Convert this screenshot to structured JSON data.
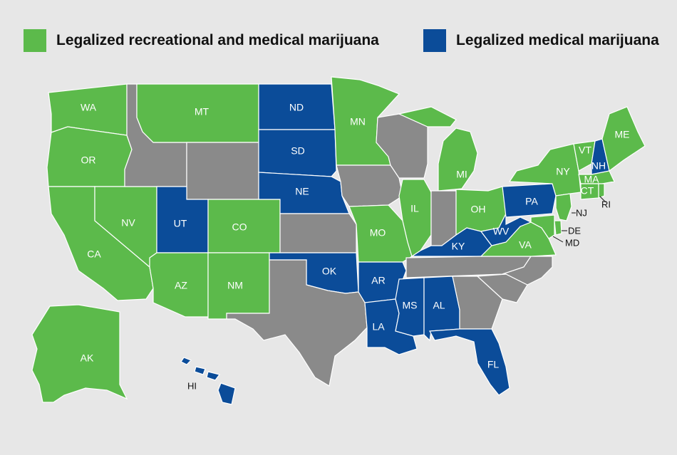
{
  "colors": {
    "recreational": "#5cba4b",
    "medical": "#0b4c99",
    "none": "#8a8a8a",
    "background": "#e7e7e7"
  },
  "legend": {
    "recreational_label": "Legalized recreational and medical marijuana",
    "medical_label": "Legalized medical marijuana"
  },
  "states": {
    "WA": {
      "label": "WA",
      "status": "recreational"
    },
    "OR": {
      "label": "OR",
      "status": "recreational"
    },
    "CA": {
      "label": "CA",
      "status": "recreational"
    },
    "NV": {
      "label": "NV",
      "status": "recreational"
    },
    "ID": {
      "label": "",
      "status": "none"
    },
    "MT": {
      "label": "MT",
      "status": "recreational"
    },
    "WY": {
      "label": "",
      "status": "none"
    },
    "UT": {
      "label": "UT",
      "status": "medical"
    },
    "AZ": {
      "label": "AZ",
      "status": "recreational"
    },
    "CO": {
      "label": "CO",
      "status": "recreational"
    },
    "NM": {
      "label": "NM",
      "status": "recreational"
    },
    "ND": {
      "label": "ND",
      "status": "medical"
    },
    "SD": {
      "label": "SD",
      "status": "medical"
    },
    "NE": {
      "label": "NE",
      "status": "medical"
    },
    "KS": {
      "label": "",
      "status": "none"
    },
    "OK": {
      "label": "OK",
      "status": "medical"
    },
    "TX": {
      "label": "",
      "status": "none"
    },
    "MN": {
      "label": "MN",
      "status": "recreational"
    },
    "IA": {
      "label": "",
      "status": "none"
    },
    "MO": {
      "label": "MO",
      "status": "recreational"
    },
    "AR": {
      "label": "AR",
      "status": "medical"
    },
    "LA": {
      "label": "LA",
      "status": "medical"
    },
    "WI": {
      "label": "",
      "status": "none"
    },
    "IL": {
      "label": "IL",
      "status": "recreational"
    },
    "MI": {
      "label": "MI",
      "status": "recreational"
    },
    "IN": {
      "label": "",
      "status": "none"
    },
    "OH": {
      "label": "OH",
      "status": "recreational"
    },
    "KY": {
      "label": "KY",
      "status": "medical"
    },
    "TN": {
      "label": "",
      "status": "none"
    },
    "MS": {
      "label": "MS",
      "status": "medical"
    },
    "AL": {
      "label": "AL",
      "status": "medical"
    },
    "GA": {
      "label": "",
      "status": "none"
    },
    "FL": {
      "label": "FL",
      "status": "medical"
    },
    "SC": {
      "label": "",
      "status": "none"
    },
    "NC": {
      "label": "",
      "status": "none"
    },
    "VA": {
      "label": "VA",
      "status": "recreational"
    },
    "WV": {
      "label": "WV",
      "status": "medical"
    },
    "PA": {
      "label": "PA",
      "status": "medical"
    },
    "NY": {
      "label": "NY",
      "status": "recreational"
    },
    "VT": {
      "label": "VT",
      "status": "recreational"
    },
    "NH": {
      "label": "NH",
      "status": "medical"
    },
    "ME": {
      "label": "ME",
      "status": "recreational"
    },
    "MA": {
      "label": "MA",
      "status": "recreational"
    },
    "CT": {
      "label": "CT",
      "status": "recreational"
    },
    "RI": {
      "label": "RI",
      "status": "recreational"
    },
    "NJ": {
      "label": "NJ",
      "status": "recreational"
    },
    "DE": {
      "label": "DE",
      "status": "recreational"
    },
    "MD": {
      "label": "MD",
      "status": "recreational"
    },
    "AK": {
      "label": "AK",
      "status": "recreational"
    },
    "HI": {
      "label": "HI",
      "status": "medical"
    }
  }
}
